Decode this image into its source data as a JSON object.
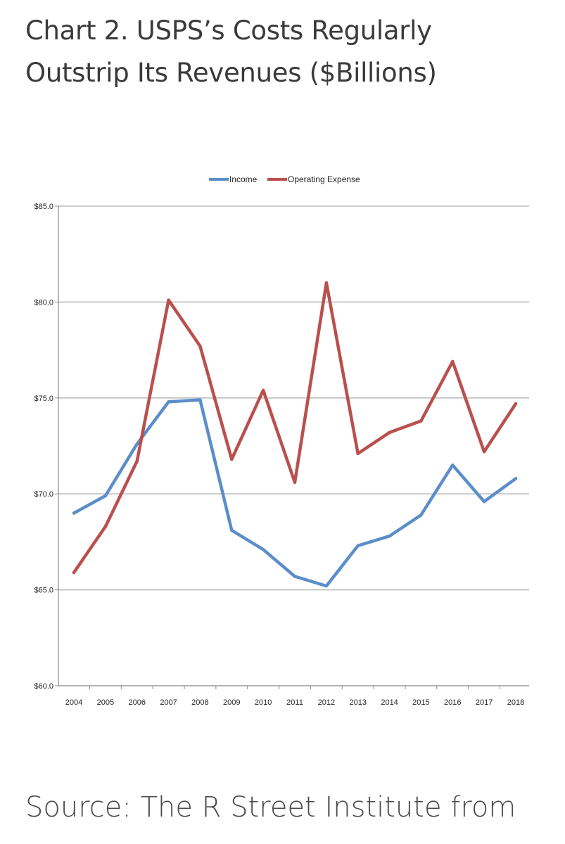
{
  "header": {
    "title_line1": "Chart 2. USPS’s Costs Regularly",
    "title_line2": "Outstrip Its Revenues ($Billions)"
  },
  "footer": {
    "source": "Source: The R Street Institute from"
  },
  "chart_data": {
    "type": "line",
    "title": "",
    "xlabel": "",
    "ylabel": "",
    "x": [
      "2004",
      "2005",
      "2006",
      "2007",
      "2008",
      "2009",
      "2010",
      "2011",
      "2012",
      "2013",
      "2014",
      "2015",
      "2016",
      "2017",
      "2018"
    ],
    "ylim": [
      60,
      85
    ],
    "yticks": [
      60,
      65,
      70,
      75,
      80,
      85
    ],
    "ytick_labels": [
      "$60.0",
      "$65.0",
      "$70.0",
      "$75.0",
      "$80.0",
      "$85.0"
    ],
    "grid": "horizontal",
    "legend": "top-center",
    "series": [
      {
        "name": "Income",
        "color": "#5b8ec9",
        "values": [
          69.0,
          69.9,
          72.6,
          74.8,
          74.9,
          68.1,
          67.1,
          65.7,
          65.2,
          67.3,
          67.8,
          68.9,
          71.5,
          69.6,
          70.8
        ]
      },
      {
        "name": "Operating Expense",
        "color": "#b9504e",
        "values": [
          65.9,
          68.3,
          71.7,
          80.1,
          77.7,
          71.8,
          75.4,
          70.6,
          81.0,
          72.1,
          73.2,
          73.8,
          76.9,
          72.2,
          74.7
        ]
      }
    ]
  }
}
